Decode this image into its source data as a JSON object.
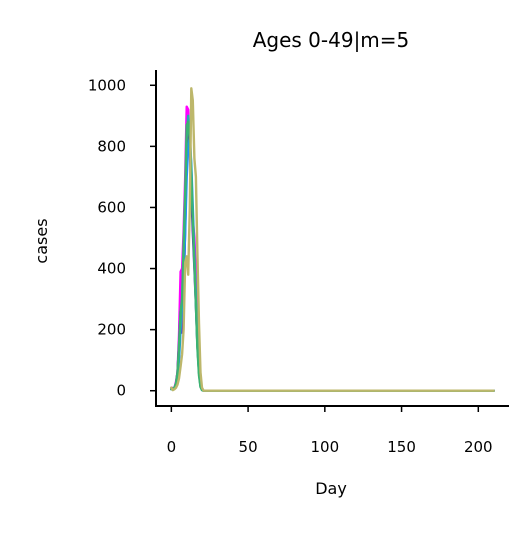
{
  "chart_data": {
    "type": "line",
    "title": "Ages 0-49|m=5",
    "xlabel": "Day",
    "ylabel": "cases",
    "xlim": [
      -10,
      220
    ],
    "ylim": [
      -50,
      1050
    ],
    "xticks": [
      0,
      50,
      100,
      150,
      200
    ],
    "yticks": [
      0,
      200,
      400,
      600,
      800,
      1000
    ],
    "grid": false,
    "legend": "none",
    "series": [
      {
        "color": "#ff00ff",
        "x": [
          0,
          2,
          3,
          4,
          5,
          6,
          7,
          8,
          9,
          10,
          11,
          12,
          13,
          14,
          15,
          16,
          17,
          18,
          19,
          20,
          21,
          25,
          50,
          100,
          150,
          210
        ],
        "values": [
          10,
          8,
          30,
          60,
          180,
          390,
          400,
          520,
          700,
          930,
          920,
          800,
          640,
          560,
          500,
          380,
          200,
          80,
          20,
          5,
          0,
          0,
          0,
          0,
          0,
          0
        ]
      },
      {
        "color": "#6a0dad",
        "x": [
          0,
          2,
          3,
          4,
          5,
          6,
          7,
          8,
          9,
          10,
          11,
          12,
          13,
          14,
          15,
          16,
          17,
          18,
          19,
          20,
          21,
          25,
          50,
          100,
          150,
          210
        ],
        "values": [
          5,
          10,
          20,
          60,
          150,
          260,
          190,
          310,
          540,
          760,
          880,
          790,
          650,
          520,
          400,
          280,
          150,
          60,
          15,
          3,
          0,
          0,
          0,
          0,
          0,
          0
        ]
      },
      {
        "color": "#1e90ff",
        "x": [
          0,
          2,
          3,
          4,
          5,
          6,
          7,
          8,
          9,
          10,
          11,
          12,
          13,
          14,
          15,
          16,
          17,
          18,
          19,
          20,
          21,
          25,
          50,
          100,
          150,
          210
        ],
        "values": [
          5,
          8,
          15,
          40,
          100,
          200,
          280,
          380,
          520,
          700,
          800,
          830,
          740,
          600,
          450,
          300,
          160,
          70,
          20,
          4,
          0,
          0,
          0,
          0,
          0,
          0
        ]
      },
      {
        "color": "#20b2aa",
        "x": [
          0,
          2,
          3,
          4,
          5,
          6,
          7,
          8,
          9,
          10,
          11,
          12,
          13,
          14,
          15,
          16,
          17,
          18,
          19,
          20,
          21,
          25,
          50,
          100,
          150,
          210
        ],
        "values": [
          5,
          8,
          20,
          50,
          120,
          230,
          300,
          450,
          620,
          830,
          900,
          850,
          720,
          560,
          420,
          290,
          150,
          60,
          15,
          3,
          0,
          0,
          0,
          0,
          0,
          0
        ]
      },
      {
        "color": "#3cb371",
        "x": [
          0,
          2,
          3,
          4,
          5,
          6,
          7,
          8,
          9,
          10,
          11,
          12,
          13,
          14,
          15,
          16,
          17,
          18,
          19,
          20,
          21,
          25,
          50,
          100,
          150,
          210
        ],
        "values": [
          5,
          10,
          25,
          60,
          150,
          260,
          300,
          480,
          650,
          870,
          880,
          820,
          700,
          560,
          420,
          280,
          140,
          50,
          12,
          2,
          0,
          0,
          0,
          0,
          0,
          0
        ]
      },
      {
        "color": "#bdb76b",
        "x": [
          0,
          1,
          2,
          3,
          4,
          5,
          6,
          7,
          8,
          9,
          10,
          11,
          12,
          13,
          14,
          15,
          16,
          17,
          18,
          19,
          20,
          21,
          25,
          50,
          100,
          150,
          210
        ],
        "values": [
          10,
          2,
          5,
          10,
          20,
          40,
          80,
          120,
          200,
          420,
          440,
          380,
          600,
          990,
          950,
          760,
          700,
          450,
          220,
          60,
          10,
          0,
          0,
          0,
          0,
          0,
          0
        ]
      }
    ]
  }
}
